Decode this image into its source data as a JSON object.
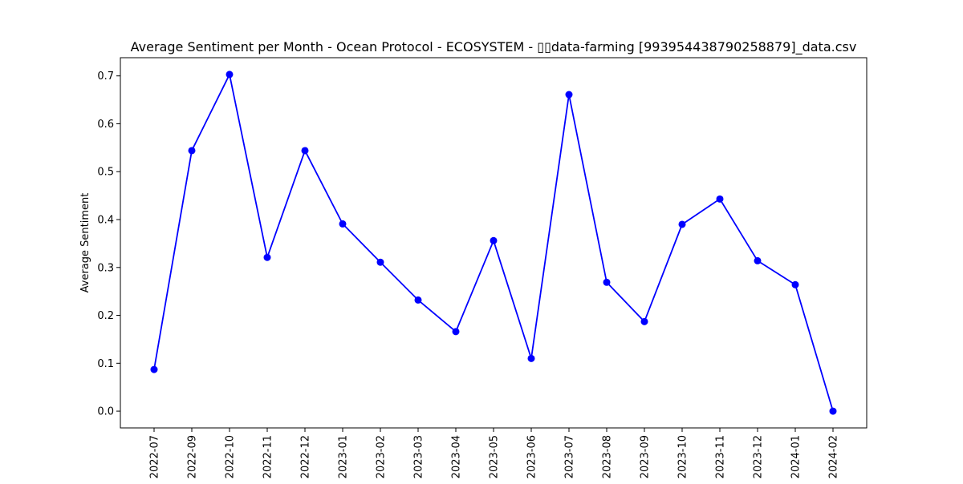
{
  "chart_data": {
    "type": "line",
    "title": "Average Sentiment per Month - Ocean Protocol - ECOSYSTEM - ▯▯data-farming [993954438790258879]_data.csv",
    "xlabel": "",
    "ylabel": "Average Sentiment",
    "categories": [
      "2022-07",
      "2022-09",
      "2022-10",
      "2022-11",
      "2022-12",
      "2023-01",
      "2023-02",
      "2023-03",
      "2023-04",
      "2023-05",
      "2023-06",
      "2023-07",
      "2023-08",
      "2023-09",
      "2023-10",
      "2023-11",
      "2023-12",
      "2024-01",
      "2024-02"
    ],
    "series": [
      {
        "values": [
          0.087,
          0.544,
          0.703,
          0.321,
          0.544,
          0.391,
          0.311,
          0.232,
          0.166,
          0.356,
          0.11,
          0.661,
          0.269,
          0.187,
          0.39,
          0.443,
          0.314,
          0.264,
          0.0
        ],
        "color": "#0000ff",
        "marker": "circle"
      }
    ],
    "yticks": [
      "0.0",
      "0.1",
      "0.2",
      "0.3",
      "0.4",
      "0.5",
      "0.6",
      "0.7"
    ],
    "ylim": [
      -0.035,
      0.738
    ],
    "grid": false,
    "legend": "none"
  }
}
